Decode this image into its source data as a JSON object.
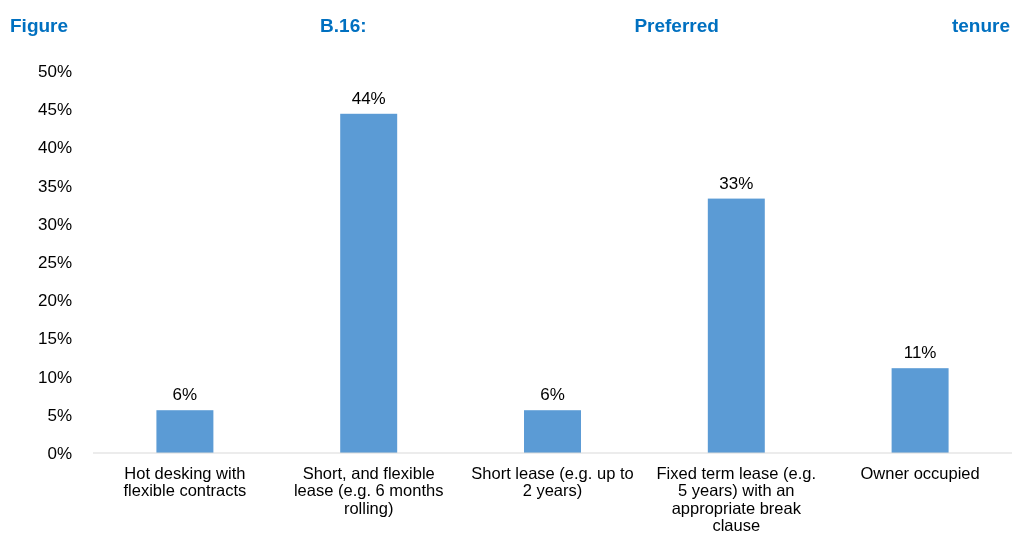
{
  "chart_data": {
    "type": "bar",
    "title": "Figure B.16: Preferred tenure",
    "categories": [
      "Hot desking with flexible contracts",
      "Short, and flexible lease (e.g. 6 months rolling)",
      "Short lease (e.g. up to 2 years)",
      "Fixed term lease (e.g. 5 years) with an appropriate break clause",
      "Owner occupied"
    ],
    "values": [
      5.6,
      44.4,
      5.6,
      33.3,
      11.1
    ],
    "value_labels": [
      "6%",
      "44%",
      "6%",
      "33%",
      "11%"
    ],
    "color": "#5b9bd5",
    "ylim": [
      0,
      50
    ],
    "yticks": [
      {
        "value": 0,
        "label": "0%"
      },
      {
        "value": 5,
        "label": "5%"
      },
      {
        "value": 10,
        "label": "10%"
      },
      {
        "value": 15,
        "label": "15%"
      },
      {
        "value": 20,
        "label": "20%"
      },
      {
        "value": 25,
        "label": "25%"
      },
      {
        "value": 30,
        "label": "30%"
      },
      {
        "value": 35,
        "label": "35%"
      },
      {
        "value": 40,
        "label": "40%"
      },
      {
        "value": 45,
        "label": "45%"
      },
      {
        "value": 50,
        "label": "50%"
      }
    ],
    "grid": false
  }
}
